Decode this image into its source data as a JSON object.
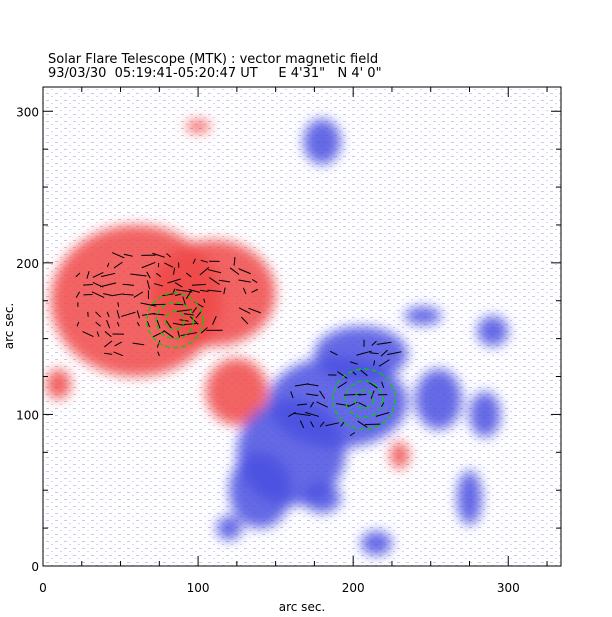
{
  "chart_data": {
    "type": "heatmap",
    "title": "Solar Flare Telescope (MTK) : vector magnetic field",
    "subtitle": "93/03/30  05:19:41-05:20:47 UT     E 4'31\"   N 4' 0\"",
    "xlabel": "arc sec.",
    "ylabel": "arc sec.",
    "xlim": [
      0,
      334
    ],
    "ylim": [
      0,
      316
    ],
    "xticks": [
      "0",
      "100",
      "200",
      "300"
    ],
    "yticks": [
      "0",
      "100",
      "200",
      "300"
    ],
    "colors": {
      "positive": "#f04848",
      "negative": "#4a50e0",
      "contour": "#00d000",
      "vectors": "#000000"
    },
    "regions": [
      {
        "polarity": "positive",
        "cx": 60,
        "cy": 175,
        "rx": 55,
        "ry": 50
      },
      {
        "polarity": "positive",
        "cx": 110,
        "cy": 180,
        "rx": 40,
        "ry": 35
      },
      {
        "polarity": "positive",
        "cx": 125,
        "cy": 115,
        "rx": 20,
        "ry": 22
      },
      {
        "polarity": "positive",
        "cx": 10,
        "cy": 120,
        "rx": 8,
        "ry": 10
      },
      {
        "polarity": "positive",
        "cx": 230,
        "cy": 73,
        "rx": 6,
        "ry": 9
      },
      {
        "polarity": "positive",
        "cx": 100,
        "cy": 290,
        "rx": 8,
        "ry": 4
      },
      {
        "polarity": "negative",
        "cx": 190,
        "cy": 108,
        "rx": 45,
        "ry": 30
      },
      {
        "polarity": "negative",
        "cx": 160,
        "cy": 75,
        "rx": 35,
        "ry": 35
      },
      {
        "polarity": "negative",
        "cx": 205,
        "cy": 140,
        "rx": 30,
        "ry": 18
      },
      {
        "polarity": "negative",
        "cx": 140,
        "cy": 50,
        "rx": 20,
        "ry": 25
      },
      {
        "polarity": "negative",
        "cx": 180,
        "cy": 45,
        "rx": 12,
        "ry": 10
      },
      {
        "polarity": "negative",
        "cx": 120,
        "cy": 25,
        "rx": 8,
        "ry": 8
      },
      {
        "polarity": "negative",
        "cx": 255,
        "cy": 110,
        "rx": 15,
        "ry": 20
      },
      {
        "polarity": "negative",
        "cx": 290,
        "cy": 155,
        "rx": 10,
        "ry": 10
      },
      {
        "polarity": "negative",
        "cx": 285,
        "cy": 100,
        "rx": 10,
        "ry": 15
      },
      {
        "polarity": "negative",
        "cx": 180,
        "cy": 280,
        "rx": 12,
        "ry": 15
      },
      {
        "polarity": "negative",
        "cx": 245,
        "cy": 165,
        "rx": 12,
        "ry": 6
      },
      {
        "polarity": "negative",
        "cx": 275,
        "cy": 45,
        "rx": 8,
        "ry": 18
      },
      {
        "polarity": "negative",
        "cx": 215,
        "cy": 15,
        "rx": 10,
        "ry": 8
      }
    ],
    "contours": [
      {
        "cx": 85,
        "cy": 162,
        "r": [
          6,
          12,
          18
        ]
      },
      {
        "cx": 207,
        "cy": 110,
        "r": [
          6,
          12,
          20
        ]
      }
    ]
  }
}
